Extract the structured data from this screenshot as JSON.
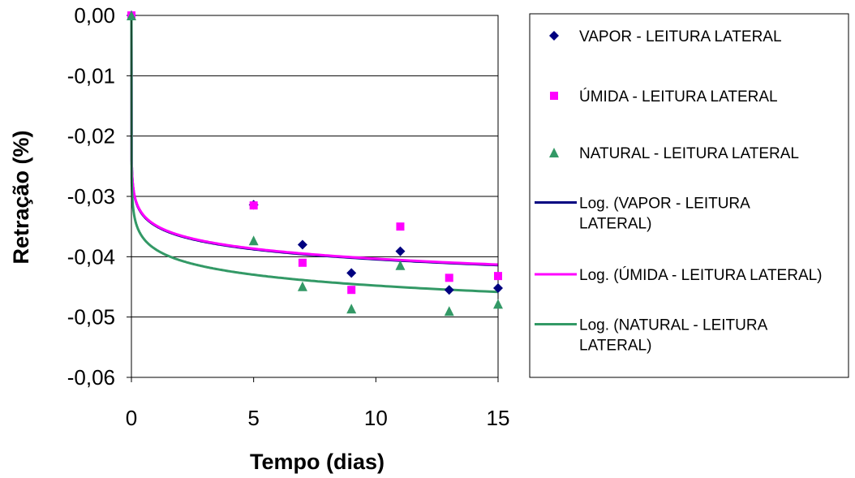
{
  "chart_data": {
    "type": "scatter",
    "xlabel": "Tempo (dias)",
    "ylabel": "Retração (%)",
    "xlim": [
      0,
      15
    ],
    "ylim": [
      -0.06,
      0.0
    ],
    "x_ticks": [
      "0",
      "5",
      "10",
      "15"
    ],
    "x_tick_values": [
      0,
      5,
      10,
      15
    ],
    "y_ticks": [
      "0,00",
      "-0,01",
      "-0,02",
      "-0,03",
      "-0,04",
      "-0,05",
      "-0,06"
    ],
    "y_tick_values": [
      0,
      -0.01,
      -0.02,
      -0.03,
      -0.04,
      -0.05,
      -0.06
    ],
    "grid": "horizontal",
    "legend_position": "right",
    "series": [
      {
        "name": "VAPOR - LEITURA LATERAL",
        "marker": "diamond",
        "color": "#000080",
        "x": [
          0,
          5,
          7,
          9,
          11,
          13,
          15
        ],
        "y": [
          0,
          -0.0314,
          -0.038,
          -0.0427,
          -0.0391,
          -0.0455,
          -0.0452
        ]
      },
      {
        "name": "ÚMIDA - LEITURA LATERAL",
        "marker": "square",
        "color": "#ff00ff",
        "x": [
          0,
          5,
          7,
          9,
          11,
          13,
          15
        ],
        "y": [
          0,
          -0.0315,
          -0.041,
          -0.0455,
          -0.035,
          -0.0435,
          -0.0432
        ]
      },
      {
        "name": "NATURAL - LEITURA LATERAL",
        "marker": "triangle",
        "color": "#339966",
        "x": [
          0,
          5,
          7,
          9,
          11,
          13,
          15
        ],
        "y": [
          0,
          -0.0373,
          -0.0449,
          -0.0486,
          -0.0414,
          -0.049,
          -0.0478
        ]
      }
    ],
    "trendlines": [
      {
        "name": "Log. (VAPOR - LEITURA LATERAL)",
        "color": "#000080",
        "intercept": -0.0349,
        "slope": -0.0024
      },
      {
        "name": "Log. (ÚMIDA - LEITURA LATERAL)",
        "color": "#ff00ff",
        "intercept": -0.0348,
        "slope": -0.0024
      },
      {
        "name": "Log. (NATURAL - LEITURA LATERAL)",
        "color": "#339966",
        "intercept": -0.0388,
        "slope": -0.0026
      }
    ],
    "legend": {
      "entries": [
        {
          "lines": [
            "VAPOR - LEITURA LATERAL"
          ],
          "kind": "marker",
          "series": 0
        },
        {
          "lines": [
            "ÚMIDA - LEITURA LATERAL"
          ],
          "kind": "marker",
          "series": 1
        },
        {
          "lines": [
            "NATURAL - LEITURA LATERAL"
          ],
          "kind": "marker",
          "series": 2
        },
        {
          "lines": [
            "Log. (VAPOR - LEITURA",
            "LATERAL)"
          ],
          "kind": "line",
          "trend": 0
        },
        {
          "lines": [
            "Log. (ÚMIDA - LEITURA LATERAL)"
          ],
          "kind": "line",
          "trend": 1
        },
        {
          "lines": [
            "Log. (NATURAL - LEITURA",
            "LATERAL)"
          ],
          "kind": "line",
          "trend": 2
        }
      ]
    }
  }
}
